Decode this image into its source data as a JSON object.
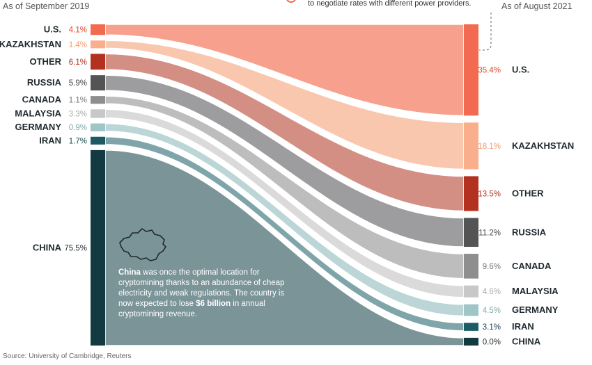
{
  "header": {
    "left_heading": "As of September 2019",
    "right_heading": "As of August 2021",
    "callout_text": "to negotiate rates with different power providers."
  },
  "note": {
    "lead": "China",
    "text_1": " was once the optimal location for cryptomining thanks to an abundance of cheap electricity and weak regulations. The country is now expected to lose ",
    "bold_2": "$6 billion",
    "text_3": " in annual cryptomining revenue."
  },
  "source": "Source: University of Cambridge, Reuters",
  "chart_data": {
    "type": "sankey",
    "left_period": "As of September 2019",
    "right_period": "As of August 2021",
    "unit": "% share of global Bitcoin hashrate",
    "countries": [
      {
        "name": "U.S.",
        "left": 4.1,
        "right": 35.4,
        "color": "#f26a4f",
        "band": "#f7a08d",
        "pct_color_left": "#e0482a",
        "pct_color_right": "#e0482a"
      },
      {
        "name": "KAZAKHSTAN",
        "left": 1.4,
        "right": 18.1,
        "color": "#f9ae8c",
        "band": "#f9c7ae",
        "pct_color_left": "#f39a70",
        "pct_color_right": "#f39a70"
      },
      {
        "name": "OTHER",
        "left": 6.1,
        "right": 13.5,
        "color": "#b3321f",
        "band": "#d48f85",
        "pct_color_left": "#b3321f",
        "pct_color_right": "#b3321f"
      },
      {
        "name": "RUSSIA",
        "left": 5.9,
        "right": 11.2,
        "color": "#545454",
        "band": "#9d9d9f",
        "pct_color_left": "#444444",
        "pct_color_right": "#444444"
      },
      {
        "name": "CANADA",
        "left": 1.1,
        "right": 9.6,
        "color": "#8e8e8e",
        "band": "#bdbdbd",
        "pct_color_left": "#777777",
        "pct_color_right": "#777777"
      },
      {
        "name": "MALAYSIA",
        "left": 3.3,
        "right": 4.6,
        "color": "#c8c8c8",
        "band": "#dadada",
        "pct_color_left": "#aaaaaa",
        "pct_color_right": "#aaaaaa"
      },
      {
        "name": "GERMANY",
        "left": 0.9,
        "right": 4.5,
        "color": "#9fc5c7",
        "band": "#bcd6d8",
        "pct_color_left": "#7fa9ab",
        "pct_color_right": "#7fa9ab"
      },
      {
        "name": "IRAN",
        "left": 1.7,
        "right": 3.1,
        "color": "#1c5b63",
        "band": "#7fa5aa",
        "pct_color_left": "#1c4a52",
        "pct_color_right": "#1c4a52"
      },
      {
        "name": "CHINA",
        "left": 75.5,
        "right": 0.0,
        "color": "#123a40",
        "band": "#7b9498",
        "pct_color_left": "#1f2a2e",
        "pct_color_right": "#1f2a2e"
      }
    ],
    "left_labels": [
      "U.S.",
      "KAZAKHSTAN",
      "OTHER",
      "RUSSIA",
      "CANADA",
      "MALAYSIA",
      "GERMANY",
      "IRAN",
      "CHINA"
    ],
    "left_values_text": [
      "4.1%",
      "1.4%",
      "6.1%",
      "5.9%",
      "1.1%",
      "3.3%",
      "0.9%",
      "1.7%",
      "75.5%"
    ],
    "right_labels": [
      "U.S.",
      "KAZAKHSTAN",
      "OTHER",
      "RUSSIA",
      "CANADA",
      "MALAYSIA",
      "GERMANY",
      "IRAN",
      "CHINA"
    ],
    "right_values_text": [
      "35.4%",
      "18.1%",
      "13.5%",
      "11.2%",
      "9.6%",
      "4.6%",
      "4.5%",
      "3.1%",
      "0.0%"
    ]
  }
}
